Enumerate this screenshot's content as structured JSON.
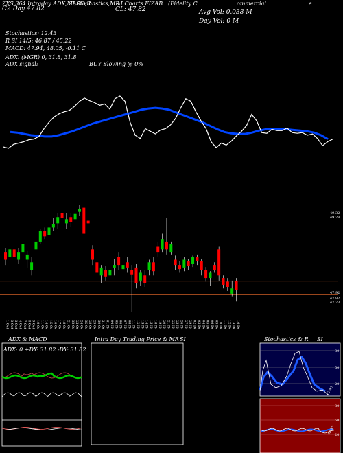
{
  "header": {
    "h1": "ZXS 364 Intraday ADX,MACD,R",
    "h2": "SI,Stochastics,MR",
    "h3": "AI Charts FIZAB",
    "h4": "(Fidelity C",
    "h5": "ommercial",
    "h6": "e",
    "day": "C2  Day  47.82",
    "cl": "CL: 47.82",
    "avgvol": "Avg Vol: 0.038  M",
    "dayvol": "Day Vol: 0   M"
  },
  "info": {
    "stoch": "Stochastics: 12.43",
    "rsi": "R          SI 14/5: 46.87 / 45.22",
    "macd": "MACD: 47.94, 48.05, -0.11 C",
    "adx": "ADX:                    (MGR) 0, 31.8, 31.8",
    "adx_signal": "ADX  signal:",
    "buy": "BUY Slowing @ 0%"
  },
  "price_labels": [
    "49.32",
    "49.28",
    "47.92",
    "47.82",
    "47.73"
  ],
  "bottom": {
    "adx_title": "ADX  & MACD",
    "adx_readout": "ADX: 0   +DY: 31.82   -DY: 31.82",
    "intra_title": "Intra  Day Trading Price  & MR",
    "intra_si": "SI",
    "stoch_title": "Stochastics & R",
    "stoch_si": "SI",
    "stoch_ticks": [
      "80",
      "50",
      "20"
    ],
    "stoch_val": "12.43",
    "rsi_ticks": [
      "80",
      "50",
      "20"
    ],
    "rsi_val": "46.87"
  },
  "chart_data": {
    "type": "candlestick",
    "dates": [
      "1 Oct",
      "2 Oct",
      "3 Oct",
      "4 Oct",
      "7 Oct",
      "8 Oct",
      "9 Oct",
      "10 Oct",
      "11 Oct",
      "14 Oct",
      "15 Oct",
      "16 Oct",
      "17 Oct",
      "18 Oct",
      "21 Oct",
      "22 Oct",
      "23 Oct",
      "24 Oct",
      "25 Oct",
      "28 Oct",
      "29 Oct",
      "30 Oct",
      "31 Oct",
      "01 Nov",
      "04 Nov",
      "05 Nov",
      "06 Nov",
      "07 Nov",
      "08 Nov",
      "11 Nov",
      "12 Nov",
      "13 Nov",
      "14 Nov",
      "15 Nov",
      "18 Nov",
      "19 Nov",
      "20 Nov",
      "21 Nov",
      "22 Nov",
      "25 Nov",
      "26 Nov",
      "27 Nov",
      "29 Nov",
      "02 Dec",
      "03 Dec",
      "04 Dec",
      "05 Dec",
      "06 Dec",
      "09 Dec",
      "10 Dec",
      "11 Dec",
      "12 Dec",
      "13 Dec",
      "16 Dec"
    ],
    "candles": [
      [
        48.55,
        48.4,
        48.62,
        48.3
      ],
      [
        48.45,
        48.6,
        48.7,
        48.35
      ],
      [
        48.6,
        48.45,
        48.68,
        48.4
      ],
      [
        48.4,
        48.55,
        48.62,
        48.32
      ],
      [
        48.55,
        48.7,
        48.78,
        48.5
      ],
      [
        48.4,
        48.5,
        48.58,
        48.25
      ],
      [
        48.2,
        48.35,
        48.45,
        48.1
      ],
      [
        48.6,
        48.75,
        48.82,
        48.52
      ],
      [
        48.75,
        48.95,
        49.0,
        48.7
      ],
      [
        48.95,
        48.85,
        49.02,
        48.8
      ],
      [
        48.88,
        49.02,
        49.12,
        48.84
      ],
      [
        49.02,
        49.08,
        49.2,
        48.96
      ],
      [
        49.1,
        49.22,
        49.3,
        49.0
      ],
      [
        49.3,
        49.2,
        49.4,
        49.1
      ],
      [
        49.1,
        49.18,
        49.3,
        49.0
      ],
      [
        49.22,
        49.12,
        49.3,
        49.04
      ],
      [
        49.18,
        49.28,
        49.34,
        49.1
      ],
      [
        49.32,
        49.38,
        49.46,
        49.25
      ],
      [
        49.4,
        48.9,
        49.45,
        48.8
      ],
      [
        49.15,
        49.1,
        49.25,
        49.0
      ],
      [
        48.6,
        48.4,
        48.68,
        48.3
      ],
      [
        48.35,
        48.15,
        48.45,
        48.05
      ],
      [
        48.1,
        48.25,
        48.3,
        47.95
      ],
      [
        48.2,
        48.08,
        48.28,
        48.0
      ],
      [
        48.1,
        48.2,
        48.3,
        48.02
      ],
      [
        48.25,
        48.3,
        48.42,
        48.1
      ],
      [
        48.45,
        48.3,
        48.55,
        48.2
      ],
      [
        48.22,
        48.3,
        48.4,
        48.12
      ],
      [
        48.35,
        48.25,
        48.45,
        48.15
      ],
      [
        48.2,
        48.12,
        48.3,
        47.4
      ],
      [
        48.25,
        47.95,
        48.32,
        47.85
      ],
      [
        48.0,
        48.15,
        48.2,
        47.9
      ],
      [
        48.1,
        47.95,
        48.2,
        47.88
      ],
      [
        48.2,
        48.35,
        48.4,
        48.1
      ],
      [
        48.35,
        48.18,
        48.45,
        48.1
      ],
      [
        48.65,
        48.55,
        48.75,
        48.45
      ],
      [
        48.6,
        48.8,
        48.9,
        48.55
      ],
      [
        48.75,
        48.6,
        49.2,
        48.5
      ],
      [
        48.55,
        48.7,
        48.75,
        48.5
      ],
      [
        48.4,
        48.3,
        48.48,
        48.2
      ],
      [
        48.3,
        48.22,
        48.38,
        48.15
      ],
      [
        48.25,
        48.4,
        48.45,
        48.18
      ],
      [
        48.38,
        48.28,
        48.42,
        48.2
      ],
      [
        48.32,
        48.45,
        48.48,
        48.26
      ],
      [
        48.45,
        48.38,
        48.5,
        48.3
      ],
      [
        48.38,
        48.2,
        48.42,
        48.1
      ],
      [
        48.2,
        48.05,
        48.26,
        47.98
      ],
      [
        48.05,
        48.15,
        48.18,
        47.9
      ],
      [
        48.3,
        48.2,
        48.35,
        48.15
      ],
      [
        48.6,
        48.1,
        48.65,
        48.0
      ],
      [
        48.05,
        47.92,
        48.1,
        47.85
      ],
      [
        47.98,
        47.88,
        48.05,
        47.8
      ],
      [
        47.75,
        47.85,
        48.0,
        47.7
      ],
      [
        48.0,
        47.82,
        48.05,
        47.6
      ]
    ],
    "price_overlay": [
      0.22,
      0.2,
      0.26,
      0.28,
      0.3,
      0.33,
      0.34,
      0.38,
      0.5,
      0.6,
      0.68,
      0.73,
      0.76,
      0.78,
      0.84,
      0.92,
      0.97,
      0.93,
      0.9,
      0.86,
      0.88,
      0.8,
      0.96,
      1.0,
      0.92,
      0.6,
      0.4,
      0.35,
      0.5,
      0.46,
      0.42,
      0.48,
      0.5,
      0.56,
      0.66,
      0.82,
      0.96,
      0.92,
      0.76,
      0.62,
      0.5,
      0.3,
      0.21,
      0.28,
      0.25,
      0.31,
      0.39,
      0.46,
      0.55,
      0.72,
      0.62,
      0.44,
      0.43,
      0.49,
      0.47,
      0.47,
      0.51,
      0.44,
      0.43,
      0.44,
      0.4,
      0.42,
      0.35,
      0.24,
      0.3,
      0.34
    ],
    "ma_overlay": [
      0.45,
      0.44,
      0.42,
      0.4,
      0.39,
      0.38,
      0.38,
      0.4,
      0.43,
      0.46,
      0.5,
      0.54,
      0.58,
      0.61,
      0.64,
      0.67,
      0.7,
      0.73,
      0.76,
      0.79,
      0.81,
      0.82,
      0.81,
      0.79,
      0.75,
      0.71,
      0.67,
      0.63,
      0.59,
      0.54,
      0.49,
      0.45,
      0.43,
      0.42,
      0.42,
      0.44,
      0.47,
      0.49,
      0.5,
      0.5,
      0.49,
      0.48,
      0.47,
      0.46,
      0.44,
      0.4,
      0.34
    ],
    "ylim": [
      47.3,
      49.5
    ]
  },
  "colors": {
    "up": "#00cc00",
    "down": "#ff0000",
    "ma": "#0044ff",
    "ref": "#b05020"
  }
}
